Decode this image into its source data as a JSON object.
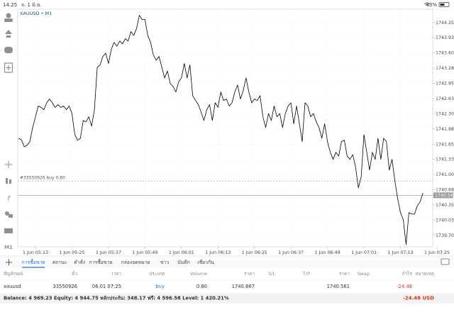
{
  "status_bar": {
    "time": "14:25",
    "date": "จ. 1 มิ.ย.",
    "battery": "43%"
  },
  "toolbar": {
    "timeframe": "M1"
  },
  "chart_data": {
    "type": "line",
    "title": "XAUUSD • M1",
    "categories": [
      null,
      null,
      null,
      null,
      null,
      null,
      "1 Jun 05:13",
      null,
      null,
      null,
      null,
      null,
      null,
      null,
      null,
      null,
      null,
      null,
      null,
      "1 Jun 05:25",
      null,
      null,
      null,
      null,
      null,
      null,
      null,
      null,
      null,
      null,
      null,
      null,
      "1 Jun 05:37",
      null,
      null,
      null,
      null,
      null,
      null,
      null,
      null,
      null,
      null,
      null,
      null,
      "1 Jun 05:49",
      null,
      null,
      null,
      null,
      null,
      null,
      null,
      null,
      null,
      null,
      null,
      null,
      "1 Jun 06:01",
      null,
      null,
      null,
      null,
      null,
      null,
      null,
      null,
      null,
      null,
      null,
      null,
      "1 Jun 06:13",
      null,
      null,
      null,
      null,
      null,
      null,
      null,
      null,
      null,
      null,
      null,
      null,
      "1 Jun 06:25",
      null,
      null,
      null,
      null,
      null,
      null,
      null,
      null,
      null,
      null,
      null,
      null,
      "1 Jun 06:37",
      null,
      null,
      null,
      null,
      null,
      null,
      null,
      null,
      null,
      null,
      null,
      null,
      "1 Jun 06:49",
      null,
      null,
      null,
      null,
      null,
      null,
      null,
      null,
      null,
      null,
      null,
      null,
      "1 Jun 07:01",
      null,
      null,
      null,
      null,
      null,
      null,
      null,
      null,
      null,
      null,
      null,
      null,
      "1 Jun 07:13",
      null,
      null,
      null,
      null,
      null,
      null,
      null,
      null,
      null,
      null,
      null,
      null,
      "1 Jun 07:25"
    ],
    "values": [
      1741.78,
      1741.75,
      1741.6,
      1741.63,
      1741.71,
      1742.01,
      1742.24,
      1742.47,
      1742.44,
      1742.39,
      1742.54,
      1742.62,
      1742.54,
      1742.44,
      1742.5,
      1742.44,
      1742.47,
      1742.39,
      1742.47,
      1742.31,
      1741.86,
      1741.74,
      1741.78,
      1742.16,
      1742.13,
      1742.24,
      1742.04,
      1742.39,
      1743.3,
      1743.35,
      1743.53,
      1743.6,
      1743.38,
      1743.68,
      1743.83,
      1743.75,
      1743.86,
      1743.8,
      1743.91,
      1743.86,
      1744.06,
      1743.98,
      1744.13,
      1744.41,
      1744.32,
      1744.32,
      1743.98,
      1743.83,
      1743.56,
      1743.45,
      1743.53,
      1743.3,
      1743.07,
      1743.22,
      1742.95,
      1742.89,
      1742.77,
      1742.99,
      1743.07,
      1743.38,
      1743.07,
      1743.35,
      1742.69,
      1742.59,
      1742.5,
      1742.34,
      1742.16,
      1742.39,
      1742.5,
      1742.16,
      1742.54,
      1742.44,
      1742.77,
      1742.59,
      1742.62,
      1742.47,
      1742.54,
      1742.77,
      1742.92,
      1742.62,
      1742.8,
      1743.07,
      1742.77,
      1742.54,
      1742.62,
      1742.59,
      1742.69,
      1742.24,
      1742.01,
      1742.31,
      1742.16,
      1742.47,
      1742.24,
      1742.31,
      1742.01,
      1742.31,
      1742.47,
      1742.54,
      1742.09,
      1742.47,
      1742.09,
      1741.71,
      1742.54,
      1742.47,
      1742.24,
      1742.31,
      1742.13,
      1742.01,
      1741.78,
      1742.09,
      1741.71,
      1741.48,
      1741.33,
      1741.48,
      1741.4,
      1741.71,
      1741.74,
      1741.4,
      1741.33,
      1741.43,
      1741.17,
      1740.72,
      1740.95,
      1741.86,
      1741.48,
      1741.1,
      1741.48,
      1741.33,
      1741.78,
      1741.33,
      1741.78,
      1741.71,
      1741.1,
      1741.33,
      1740.87,
      1740.49,
      1740.19,
      1740.04,
      1739.51,
      1740.19,
      1740.16,
      1740.16,
      1740.34,
      1740.42,
      1740.61,
      null,
      null,
      null,
      null,
      null
    ],
    "color": "#000000",
    "ylim": [
      1739.46,
      1744.54
    ],
    "yticks": [
      1744.255,
      {
        "value": 1743.93,
        "label": "1743.930"
      },
      1743.605,
      {
        "value": 1743.28,
        "label": "1743.280"
      },
      1742.955,
      {
        "value": 1742.63,
        "label": "1742.630"
      },
      1742.305,
      {
        "value": 1741.98,
        "label": "1741.980"
      },
      1741.655,
      {
        "value": 1741.33,
        "label": "1741.330"
      },
      1741.005,
      {
        "value": 1740.68,
        "label": "1740.680"
      },
      1740.355,
      {
        "value": 1740.03,
        "label": "1740.030"
      },
      1739.705
    ],
    "grid": true,
    "current_price": 1740.561,
    "order_line": {
      "label": "#33550926 buy 0.80",
      "value": 1740.867
    }
  },
  "tabs": [
    "การซื้อขาย",
    "สถานะ",
    "คำสั่ง",
    "การซื้อขาย",
    "กล่องจดหมาย",
    "ข่าว",
    "บันทึก",
    "เชี่ยวกัน"
  ],
  "table": {
    "header": [
      "สัญลักษณ์",
      "ตั๋ว",
      "เวลา",
      "ประเภท",
      "Volume",
      "ราคา",
      "S/L",
      "T/P",
      "ราคา",
      "Swap",
      "กำไร",
      "หมายเหตุ"
    ],
    "rows": [
      [
        "xauusd",
        "33550926",
        "06.01 07:25",
        "buy",
        "0.80",
        "1740.867",
        "",
        "",
        "1740.561",
        "",
        "-24.48",
        ""
      ]
    ]
  },
  "footer": {
    "summary": "Balance: 4 969.23 Equity: 4 944.75 หลักประกัน: 348.17 ฟรี: 4 596.58 Level: 1 420.21%",
    "profit": "-24.48",
    "currency": "USD"
  }
}
